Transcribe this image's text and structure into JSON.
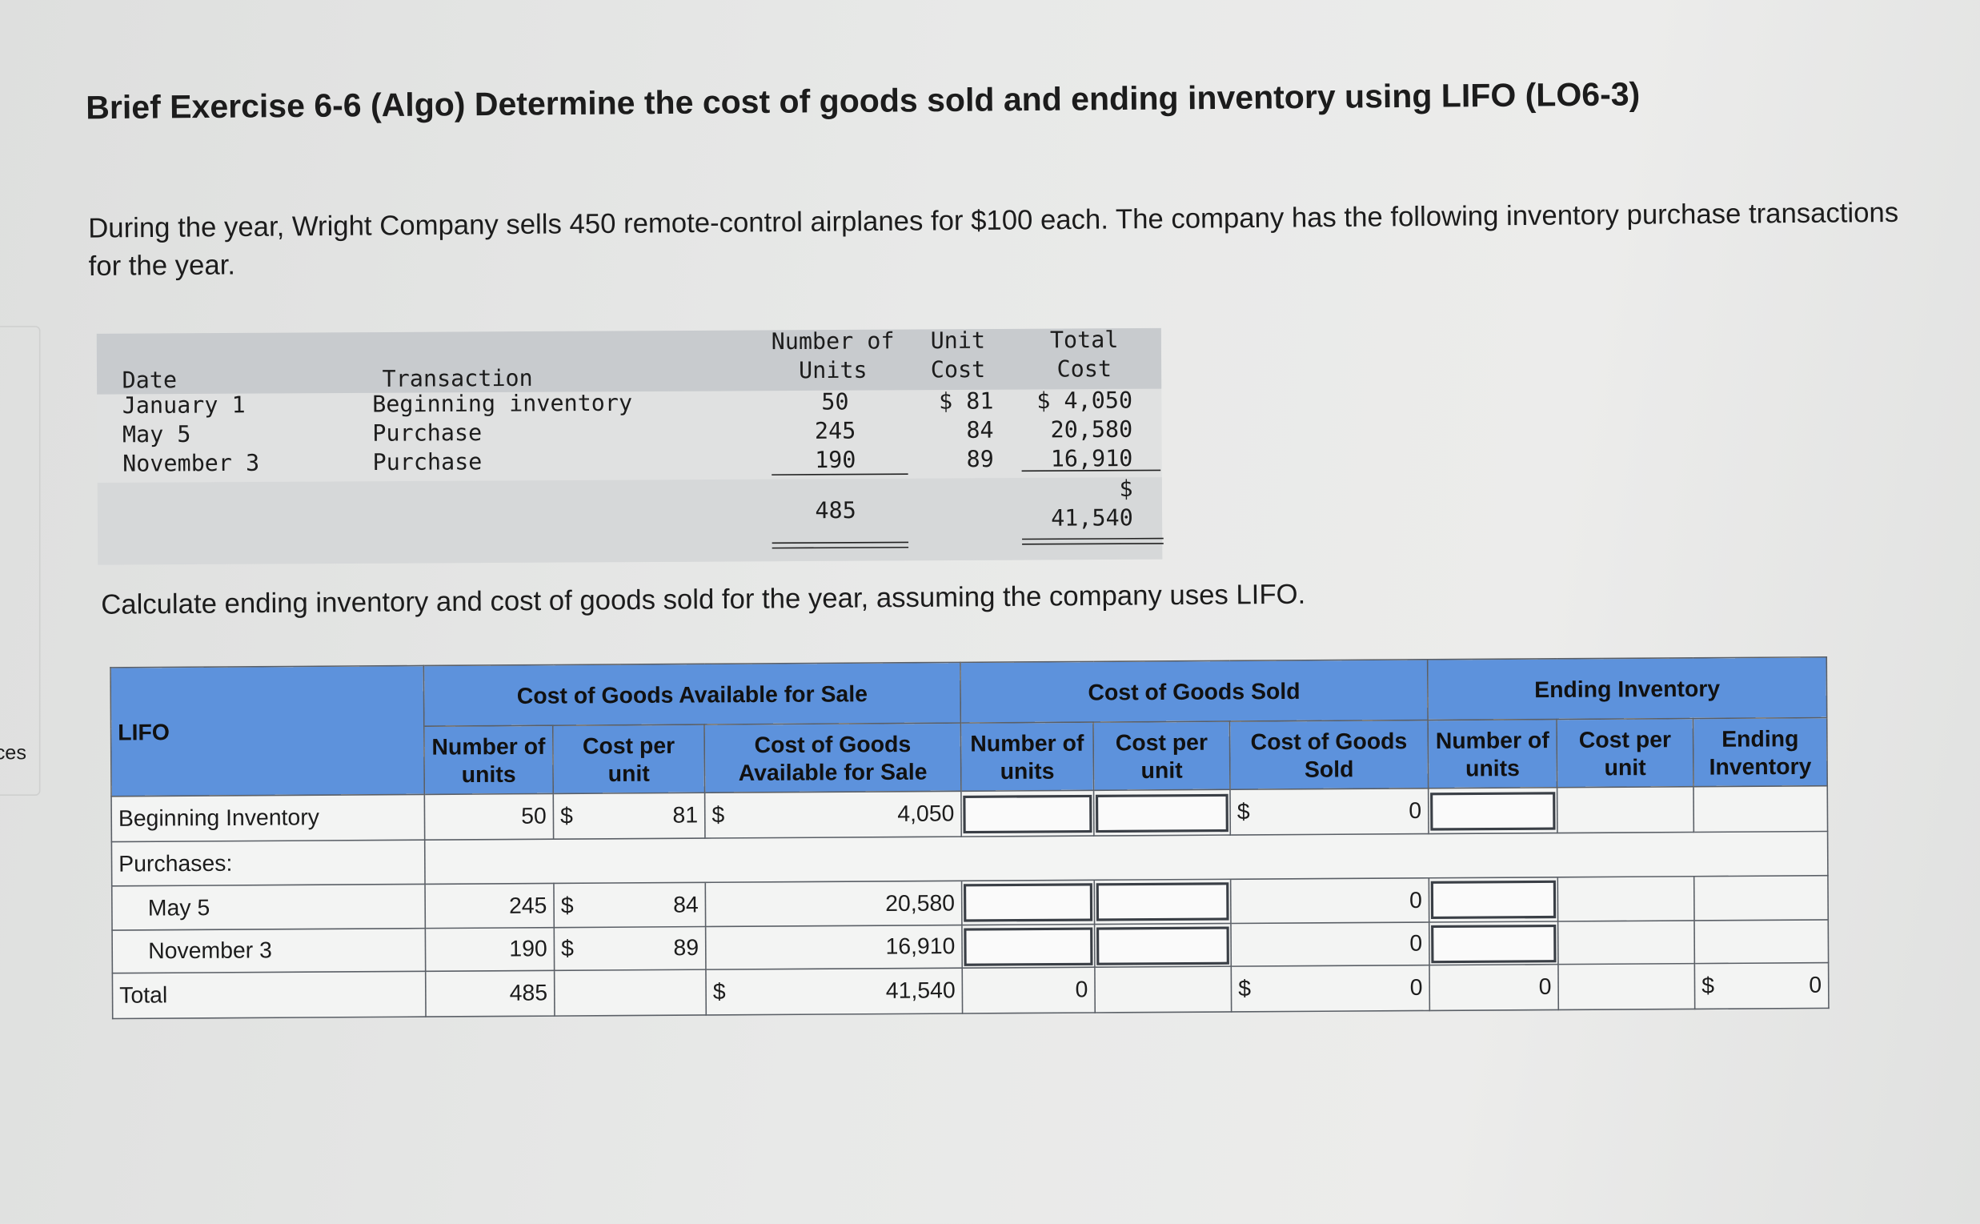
{
  "sidebar_fragment": "ces",
  "title": "Brief Exercise 6-6 (Algo) Determine the cost of goods sold and ending inventory using LIFO (LO6-3)",
  "intro": "During the year, Wright Company sells 450 remote-control airplanes for $100 each. The company has the following inventory purchase transactions for the year.",
  "purchases_table": {
    "columns": [
      "Date",
      "Transaction",
      "Number of Units",
      "Unit Cost",
      "Total Cost"
    ],
    "rows": [
      [
        "January 1",
        "Beginning inventory",
        "50",
        "$ 81",
        "$ 4,050"
      ],
      [
        "May 5",
        "Purchase",
        "245",
        "84",
        "20,580"
      ],
      [
        "November 3",
        "Purchase",
        "190",
        "89",
        "16,910"
      ]
    ],
    "total": {
      "units": "485",
      "symbol": "$",
      "cost": "41,540"
    }
  },
  "question": "Calculate ending inventory and cost of goods sold for the year, assuming the company uses LIFO.",
  "lifo_table": {
    "corner": "LIFO",
    "groups": [
      "Cost of Goods Available for Sale",
      "Cost of Goods Sold",
      "Ending Inventory"
    ],
    "columns": [
      "Number of units",
      "Cost per unit",
      "Cost of Goods Available for Sale",
      "Number of units",
      "Cost per unit",
      "Cost of Goods Sold",
      "Number of units",
      "Cost per unit",
      "Ending Inventory"
    ],
    "rows": [
      {
        "label": "Beginning Inventory",
        "cells": {
          "units": "50",
          "cost": {
            "symbol": "$",
            "amount": "81"
          },
          "total": {
            "symbol": "$",
            "amount": "4,050"
          },
          "cogs_total": {
            "symbol": "$",
            "amount": "0"
          }
        }
      },
      {
        "label": "Purchases:"
      },
      {
        "label": "May 5",
        "indent": true,
        "cells": {
          "units": "245",
          "cost": {
            "symbol": "$",
            "amount": "84"
          },
          "total": "20,580",
          "cogs_total": "0"
        }
      },
      {
        "label": "November 3",
        "indent": true,
        "cells": {
          "units": "190",
          "cost": {
            "symbol": "$",
            "amount": "89"
          },
          "total": "16,910",
          "cogs_total": "0"
        }
      },
      {
        "label": "Total",
        "cells": {
          "units": "485",
          "total": {
            "symbol": "$",
            "amount": "41,540"
          },
          "cogs_units": "0",
          "cogs_total": {
            "symbol": "$",
            "amount": "0"
          },
          "ei_units": "0",
          "ei_total": {
            "symbol": "$",
            "amount": "0"
          }
        }
      }
    ]
  }
}
